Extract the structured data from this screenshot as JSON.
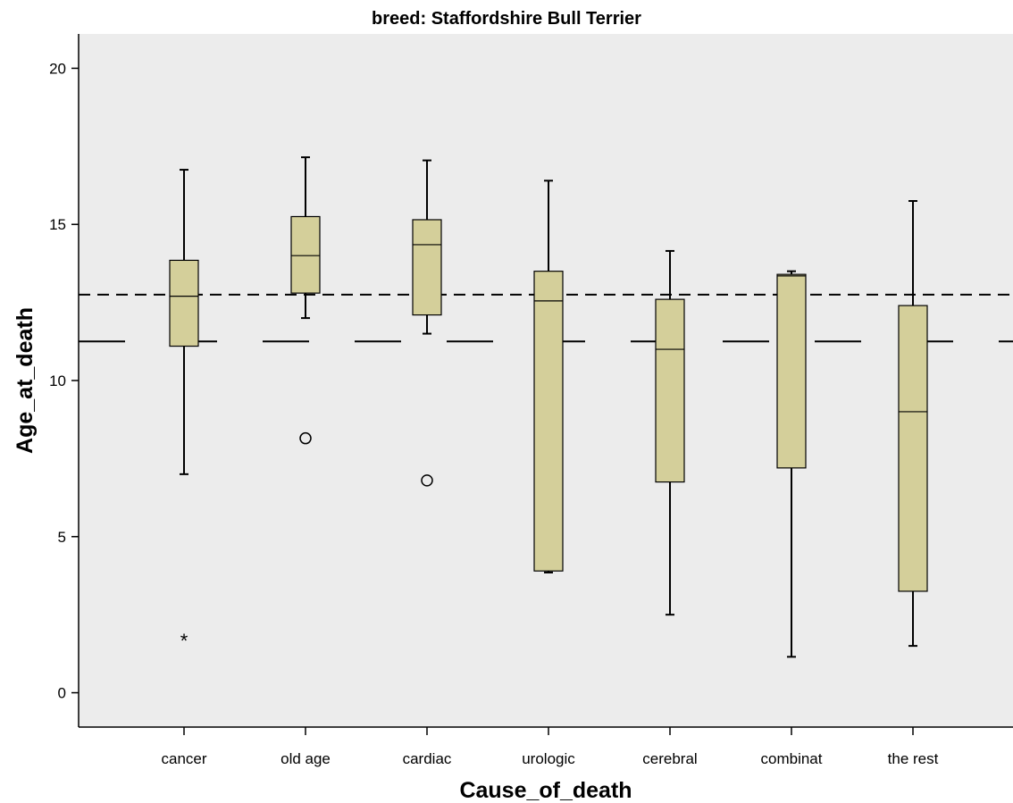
{
  "chart_data": {
    "type": "box",
    "title": "breed: Staffordshire Bull Terrier",
    "xlabel": "Cause_of_death",
    "ylabel": "Age_at_death",
    "ylim": [
      -1.1,
      21.1
    ],
    "yticks": [
      0,
      5,
      10,
      15,
      20
    ],
    "categories": [
      "cancer",
      "old age",
      "cardiac",
      "urologic",
      "cerebral",
      "combinat",
      "the rest"
    ],
    "boxes": [
      {
        "category": "cancer",
        "whisker_low": 7.0,
        "q1": 11.1,
        "median": 12.7,
        "q3": 13.85,
        "whisker_high": 16.75,
        "outliers": [],
        "extremes": [
          1.7
        ]
      },
      {
        "category": "old age",
        "whisker_low": 12.0,
        "q1": 12.8,
        "median": 14.0,
        "q3": 15.25,
        "whisker_high": 17.15,
        "outliers": [
          8.15
        ],
        "extremes": []
      },
      {
        "category": "cardiac",
        "whisker_low": 11.5,
        "q1": 12.1,
        "median": 14.35,
        "q3": 15.15,
        "whisker_high": 17.05,
        "outliers": [
          6.8
        ],
        "extremes": []
      },
      {
        "category": "urologic",
        "whisker_low": 3.85,
        "q1": 3.9,
        "median": 12.55,
        "q3": 13.5,
        "whisker_high": 16.4,
        "outliers": [],
        "extremes": []
      },
      {
        "category": "cerebral",
        "whisker_low": 2.5,
        "q1": 6.75,
        "median": 11.0,
        "q3": 12.6,
        "whisker_high": 14.15,
        "outliers": [],
        "extremes": []
      },
      {
        "category": "combinat",
        "whisker_low": 1.15,
        "q1": 7.2,
        "median": 13.35,
        "q3": 13.4,
        "whisker_high": 13.5,
        "outliers": [],
        "extremes": []
      },
      {
        "category": "the rest",
        "whisker_low": 1.5,
        "q1": 3.25,
        "median": 9.0,
        "q3": 12.4,
        "whisker_high": 15.75,
        "outliers": [],
        "extremes": []
      }
    ],
    "reference_lines": [
      {
        "y": 12.75,
        "style": "short-dash"
      },
      {
        "y": 11.25,
        "style": "long-dash"
      }
    ],
    "grid": false,
    "legend": "none",
    "colors": {
      "plot_background": "#ececec",
      "box_fill": "#d4cf9a",
      "stroke": "#000000"
    }
  }
}
